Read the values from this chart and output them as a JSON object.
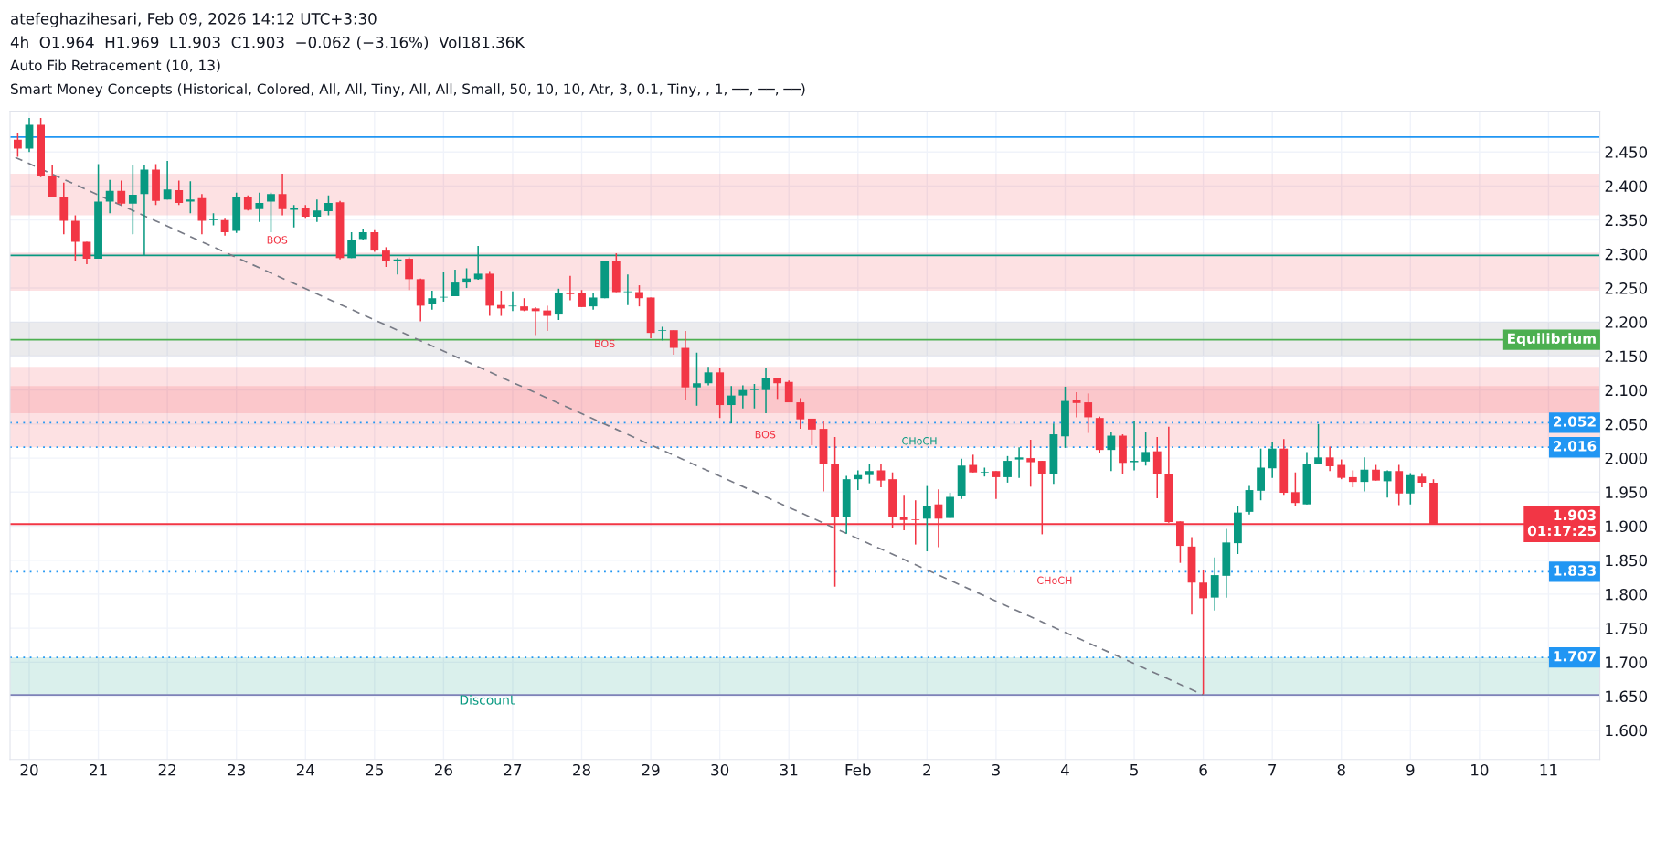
{
  "chart_data": {
    "type": "candlestick",
    "title": "atefeghazihesari, Feb 09, 2026 14:12 UTC+3:30",
    "subtitle": "4h  O1.964  H1.969  L1.903  C1.903  −0.062 (−3.16%)  Vol181.36K",
    "annotations": [
      "Auto Fib Retracement (10, 13)",
      "Smart Money Concepts (Historical, Colored, All, All, Tiny, All, All, Small, 50, 10, 10, Atr, 3, 0.1, Tiny, , 1, ──, ──, ──)",
      "BOS",
      "BOS",
      "BOS",
      "CHoCH",
      "CHoCH"
    ],
    "x": [
      "2026-01-19T20:00",
      "2026-01-20T00:00",
      "2026-01-20T04:00",
      "2026-01-20T08:00",
      "2026-01-20T12:00",
      "2026-01-20T16:00",
      "2026-01-20T20:00",
      "2026-01-21T00:00",
      "2026-01-21T04:00",
      "2026-01-21T08:00",
      "2026-01-21T12:00",
      "2026-01-21T16:00",
      "2026-01-21T20:00",
      "2026-01-22T00:00",
      "2026-01-22T04:00",
      "2026-01-22T08:00",
      "2026-01-22T12:00",
      "2026-01-22T16:00",
      "2026-01-22T20:00",
      "2026-01-23T00:00",
      "2026-01-23T04:00",
      "2026-01-23T08:00",
      "2026-01-23T12:00",
      "2026-01-23T16:00",
      "2026-01-23T20:00",
      "2026-01-24T00:00",
      "2026-01-24T04:00",
      "2026-01-24T08:00",
      "2026-01-24T12:00",
      "2026-01-24T16:00",
      "2026-01-24T20:00",
      "2026-01-25T00:00",
      "2026-01-25T04:00",
      "2026-01-25T08:00",
      "2026-01-25T12:00",
      "2026-01-25T16:00",
      "2026-01-25T20:00",
      "2026-01-26T00:00",
      "2026-01-26T04:00",
      "2026-01-26T08:00",
      "2026-01-26T12:00",
      "2026-01-26T16:00",
      "2026-01-26T20:00",
      "2026-01-27T00:00",
      "2026-01-27T04:00",
      "2026-01-27T08:00",
      "2026-01-27T12:00",
      "2026-01-27T16:00",
      "2026-01-27T20:00",
      "2026-01-28T00:00",
      "2026-01-28T04:00",
      "2026-01-28T08:00",
      "2026-01-28T12:00",
      "2026-01-28T16:00",
      "2026-01-28T20:00",
      "2026-01-29T00:00",
      "2026-01-29T04:00",
      "2026-01-29T08:00",
      "2026-01-29T12:00",
      "2026-01-29T16:00",
      "2026-01-29T20:00",
      "2026-01-30T00:00",
      "2026-01-30T04:00",
      "2026-01-30T08:00",
      "2026-01-30T12:00",
      "2026-01-30T16:00",
      "2026-01-30T20:00",
      "2026-01-31T00:00",
      "2026-01-31T04:00",
      "2026-01-31T08:00",
      "2026-01-31T12:00",
      "2026-01-31T16:00",
      "2026-01-31T20:00",
      "2026-02-01T00:00",
      "2026-02-01T04:00",
      "2026-02-01T08:00",
      "2026-02-01T12:00",
      "2026-02-01T16:00",
      "2026-02-01T20:00",
      "2026-02-02T00:00",
      "2026-02-02T04:00",
      "2026-02-02T08:00",
      "2026-02-02T12:00",
      "2026-02-02T16:00",
      "2026-02-02T20:00",
      "2026-02-03T00:00",
      "2026-02-03T04:00",
      "2026-02-03T08:00",
      "2026-02-03T12:00",
      "2026-02-03T16:00",
      "2026-02-03T20:00",
      "2026-02-04T00:00",
      "2026-02-04T04:00",
      "2026-02-04T08:00",
      "2026-02-04T12:00",
      "2026-02-04T16:00",
      "2026-02-04T20:00",
      "2026-02-05T00:00",
      "2026-02-05T04:00",
      "2026-02-05T08:00",
      "2026-02-05T12:00",
      "2026-02-05T16:00",
      "2026-02-05T20:00",
      "2026-02-06T00:00",
      "2026-02-06T04:00",
      "2026-02-06T08:00",
      "2026-02-06T12:00",
      "2026-02-06T16:00",
      "2026-02-06T20:00",
      "2026-02-07T00:00",
      "2026-02-07T04:00",
      "2026-02-07T08:00",
      "2026-02-07T12:00",
      "2026-02-07T16:00",
      "2026-02-07T20:00",
      "2026-02-08T00:00",
      "2026-02-08T04:00",
      "2026-02-08T08:00",
      "2026-02-08T12:00",
      "2026-02-08T16:00",
      "2026-02-08T20:00",
      "2026-02-09T00:00",
      "2026-02-09T04:00",
      "2026-02-09T08:00"
    ],
    "ohlc": [
      [
        2.468,
        2.478,
        2.443,
        2.455
      ],
      [
        2.455,
        2.5,
        2.45,
        2.49
      ],
      [
        2.49,
        2.5,
        2.413,
        2.415
      ],
      [
        2.415,
        2.431,
        2.383,
        2.384
      ],
      [
        2.384,
        2.405,
        2.329,
        2.349
      ],
      [
        2.349,
        2.357,
        2.289,
        2.318
      ],
      [
        2.318,
        2.318,
        2.285,
        2.293
      ],
      [
        2.293,
        2.432,
        2.293,
        2.377
      ],
      [
        2.377,
        2.409,
        2.36,
        2.393
      ],
      [
        2.393,
        2.408,
        2.372,
        2.374
      ],
      [
        2.374,
        2.431,
        2.329,
        2.387
      ],
      [
        2.388,
        2.431,
        2.298,
        2.424
      ],
      [
        2.424,
        2.432,
        2.372,
        2.378
      ],
      [
        2.38,
        2.437,
        2.38,
        2.395
      ],
      [
        2.394,
        2.408,
        2.372,
        2.375
      ],
      [
        2.377,
        2.407,
        2.36,
        2.38
      ],
      [
        2.382,
        2.388,
        2.329,
        2.349
      ],
      [
        2.35,
        2.36,
        2.342,
        2.351
      ],
      [
        2.35,
        2.352,
        2.327,
        2.332
      ],
      [
        2.334,
        2.39,
        2.331,
        2.384
      ],
      [
        2.384,
        2.386,
        2.364,
        2.365
      ],
      [
        2.366,
        2.39,
        2.347,
        2.375
      ],
      [
        2.377,
        2.39,
        2.332,
        2.388
      ],
      [
        2.388,
        2.418,
        2.357,
        2.366
      ],
      [
        2.365,
        2.372,
        2.339,
        2.367
      ],
      [
        2.368,
        2.372,
        2.352,
        2.355
      ],
      [
        2.355,
        2.38,
        2.347,
        2.364
      ],
      [
        2.363,
        2.386,
        2.357,
        2.375
      ],
      [
        2.376,
        2.378,
        2.292,
        2.294
      ],
      [
        2.294,
        2.332,
        2.294,
        2.32
      ],
      [
        2.322,
        2.336,
        2.321,
        2.332
      ],
      [
        2.332,
        2.335,
        2.303,
        2.305
      ],
      [
        2.305,
        2.31,
        2.281,
        2.29
      ],
      [
        2.29,
        2.294,
        2.27,
        2.292
      ],
      [
        2.293,
        2.295,
        2.247,
        2.263
      ],
      [
        2.263,
        2.264,
        2.201,
        2.224
      ],
      [
        2.227,
        2.246,
        2.218,
        2.235
      ],
      [
        2.236,
        2.273,
        2.23,
        2.237
      ],
      [
        2.238,
        2.277,
        2.238,
        2.258
      ],
      [
        2.258,
        2.279,
        2.25,
        2.264
      ],
      [
        2.263,
        2.312,
        2.262,
        2.271
      ],
      [
        2.271,
        2.275,
        2.209,
        2.224
      ],
      [
        2.225,
        2.246,
        2.209,
        2.22
      ],
      [
        2.223,
        2.245,
        2.216,
        2.224
      ],
      [
        2.223,
        2.235,
        2.216,
        2.217
      ],
      [
        2.22,
        2.222,
        2.181,
        2.216
      ],
      [
        2.217,
        2.224,
        2.187,
        2.209
      ],
      [
        2.211,
        2.249,
        2.203,
        2.242
      ],
      [
        2.243,
        2.268,
        2.232,
        2.241
      ],
      [
        2.243,
        2.247,
        2.222,
        2.222
      ],
      [
        2.223,
        2.243,
        2.218,
        2.236
      ],
      [
        2.235,
        2.29,
        2.235,
        2.29
      ],
      [
        2.29,
        2.301,
        2.244,
        2.244
      ],
      [
        2.244,
        2.27,
        2.225,
        2.245
      ],
      [
        2.244,
        2.254,
        2.223,
        2.235
      ],
      [
        2.236,
        2.236,
        2.176,
        2.184
      ],
      [
        2.187,
        2.193,
        2.173,
        2.188
      ],
      [
        2.188,
        2.188,
        2.152,
        2.162
      ],
      [
        2.162,
        2.187,
        2.086,
        2.104
      ],
      [
        2.104,
        2.155,
        2.077,
        2.11
      ],
      [
        2.11,
        2.134,
        2.107,
        2.126
      ],
      [
        2.126,
        2.133,
        2.059,
        2.078
      ],
      [
        2.078,
        2.106,
        2.051,
        2.092
      ],
      [
        2.092,
        2.107,
        2.073,
        2.1
      ],
      [
        2.1,
        2.109,
        2.073,
        2.102
      ],
      [
        2.1,
        2.133,
        2.066,
        2.118
      ],
      [
        2.117,
        2.118,
        2.087,
        2.11
      ],
      [
        2.112,
        2.114,
        2.082,
        2.082
      ],
      [
        2.082,
        2.088,
        2.043,
        2.057
      ],
      [
        2.058,
        2.058,
        2.019,
        2.042
      ],
      [
        2.043,
        2.054,
        1.951,
        1.991
      ],
      [
        1.992,
        2.031,
        1.811,
        1.913
      ],
      [
        1.913,
        1.974,
        1.889,
        1.969
      ],
      [
        1.969,
        1.982,
        1.953,
        1.975
      ],
      [
        1.975,
        1.991,
        1.963,
        1.981
      ],
      [
        1.982,
        1.991,
        1.957,
        1.967
      ],
      [
        1.969,
        1.979,
        1.898,
        1.914
      ],
      [
        1.914,
        1.946,
        1.894,
        1.909
      ],
      [
        1.91,
        1.938,
        1.873,
        1.909
      ],
      [
        1.911,
        1.959,
        1.863,
        1.929
      ],
      [
        1.932,
        1.954,
        1.869,
        1.911
      ],
      [
        1.912,
        1.949,
        1.912,
        1.943
      ],
      [
        1.944,
        1.999,
        1.94,
        1.989
      ],
      [
        1.99,
        2.005,
        1.979,
        1.979
      ],
      [
        1.979,
        1.986,
        1.973,
        1.98
      ],
      [
        1.981,
        1.981,
        1.94,
        1.972
      ],
      [
        1.972,
        2.003,
        1.964,
        1.996
      ],
      [
        1.998,
        2.016,
        1.971,
        2.001
      ],
      [
        2.0,
        2.027,
        1.958,
        1.994
      ],
      [
        1.996,
        1.996,
        1.888,
        1.977
      ],
      [
        1.977,
        2.051,
        1.962,
        2.035
      ],
      [
        2.032,
        2.105,
        2.015,
        2.084
      ],
      [
        2.085,
        2.097,
        2.06,
        2.081
      ],
      [
        2.082,
        2.095,
        2.037,
        2.06
      ],
      [
        2.059,
        2.061,
        2.008,
        2.012
      ],
      [
        2.012,
        2.039,
        1.981,
        2.033
      ],
      [
        2.033,
        2.035,
        1.976,
        1.993
      ],
      [
        1.994,
        2.055,
        1.982,
        1.996
      ],
      [
        1.995,
        2.039,
        1.989,
        2.009
      ],
      [
        2.01,
        2.031,
        1.941,
        1.977
      ],
      [
        1.977,
        2.046,
        1.905,
        1.906
      ],
      [
        1.907,
        1.907,
        1.846,
        1.871
      ],
      [
        1.87,
        1.884,
        1.77,
        1.817
      ],
      [
        1.817,
        1.836,
        1.653,
        1.794
      ],
      [
        1.795,
        1.854,
        1.776,
        1.828
      ],
      [
        1.827,
        1.896,
        1.795,
        1.876
      ],
      [
        1.875,
        1.929,
        1.859,
        1.92
      ],
      [
        1.921,
        1.959,
        1.917,
        1.953
      ],
      [
        1.952,
        2.014,
        1.938,
        1.986
      ],
      [
        1.985,
        2.023,
        1.971,
        2.014
      ],
      [
        2.014,
        2.028,
        1.946,
        1.949
      ],
      [
        1.95,
        1.979,
        1.929,
        1.934
      ],
      [
        1.932,
        2.009,
        1.932,
        1.991
      ],
      [
        1.991,
        2.05,
        1.991,
        2.001
      ],
      [
        2.001,
        2.017,
        1.981,
        1.988
      ],
      [
        1.99,
        1.998,
        1.969,
        1.971
      ],
      [
        1.972,
        1.982,
        1.957,
        1.965
      ],
      [
        1.965,
        2.001,
        1.951,
        1.983
      ],
      [
        1.983,
        1.99,
        1.967,
        1.967
      ],
      [
        1.966,
        1.982,
        1.942,
        1.981
      ],
      [
        1.981,
        1.99,
        1.931,
        1.948
      ],
      [
        1.948,
        1.978,
        1.932,
        1.975
      ],
      [
        1.973,
        1.978,
        1.957,
        1.964
      ],
      [
        1.964,
        1.969,
        1.903,
        1.903
      ]
    ],
    "series": [
      {
        "type": "line",
        "x": [
          "2026-01-19T19:10",
          "2026-02-06T00:00"
        ],
        "values": [
          2.442,
          1.652
        ],
        "color": "#787b86",
        "line_style": "dashed"
      }
    ],
    "ref_lines": [
      {
        "axis": "y",
        "value": 2.472,
        "color": "#2196f3",
        "line_style": "solid"
      },
      {
        "axis": "y",
        "value": 2.298,
        "color": "#089981",
        "line_style": "solid"
      },
      {
        "axis": "y",
        "value": 2.174,
        "label": "Equilibrium",
        "color": "#4caf50",
        "line_style": "solid"
      },
      {
        "axis": "y",
        "value": 2.052,
        "label": "2.052",
        "color": "#2196f3",
        "line_style": "dotted"
      },
      {
        "axis": "y",
        "value": 2.016,
        "label": "2.016",
        "color": "#2196f3",
        "line_style": "dotted"
      },
      {
        "axis": "y",
        "value": 1.903,
        "label": "1.903\n01:17:25",
        "color": "#f23645",
        "line_style": "solid"
      },
      {
        "axis": "y",
        "value": 1.833,
        "label": "1.833",
        "color": "#2196f3",
        "line_style": "dotted"
      },
      {
        "axis": "y",
        "value": 1.707,
        "label": "1.707",
        "color": "#2196f3",
        "line_style": "dotted"
      },
      {
        "axis": "y",
        "value": 1.652,
        "color": "#7e82b8",
        "line_style": "solid"
      }
    ],
    "bands": [
      {
        "axis": "y",
        "from": 2.357,
        "to": 2.418,
        "color": "#f23645"
      },
      {
        "axis": "y",
        "from": 2.246,
        "to": 2.302,
        "color": "#f23645"
      },
      {
        "axis": "y",
        "from": 2.15,
        "to": 2.2,
        "color": "#787b86"
      },
      {
        "axis": "y",
        "from": 2.066,
        "to": 2.134,
        "color": "#f23645"
      },
      {
        "axis": "y",
        "from": 2.066,
        "to": 2.106,
        "color": "#f23645"
      },
      {
        "axis": "y",
        "from": 2.016,
        "to": 2.066,
        "color": "#f23645"
      },
      {
        "axis": "y",
        "from": 1.652,
        "to": 1.707,
        "label": "Discount",
        "color": "#089981"
      }
    ],
    "xlim": [
      "2026-01-19T17:20",
      "2026-02-11T17:50"
    ],
    "xticks": [
      {
        "value": "2026-01-20",
        "label": "20"
      },
      {
        "value": "2026-01-21",
        "label": "21"
      },
      {
        "value": "2026-01-22",
        "label": "22"
      },
      {
        "value": "2026-01-23",
        "label": "23"
      },
      {
        "value": "2026-01-24",
        "label": "24"
      },
      {
        "value": "2026-01-25",
        "label": "25"
      },
      {
        "value": "2026-01-26",
        "label": "26"
      },
      {
        "value": "2026-01-27",
        "label": "27"
      },
      {
        "value": "2026-01-28",
        "label": "28"
      },
      {
        "value": "2026-01-29",
        "label": "29"
      },
      {
        "value": "2026-01-30",
        "label": "30"
      },
      {
        "value": "2026-01-31",
        "label": "31"
      },
      {
        "value": "2026-02-01",
        "label": "Feb"
      },
      {
        "value": "2026-02-02",
        "label": "2"
      },
      {
        "value": "2026-02-03",
        "label": "3"
      },
      {
        "value": "2026-02-04",
        "label": "4"
      },
      {
        "value": "2026-02-05",
        "label": "5"
      },
      {
        "value": "2026-02-06",
        "label": "6"
      },
      {
        "value": "2026-02-07",
        "label": "7"
      },
      {
        "value": "2026-02-08",
        "label": "8"
      },
      {
        "value": "2026-02-09",
        "label": "9"
      },
      {
        "value": "2026-02-10",
        "label": "10"
      },
      {
        "value": "2026-02-11",
        "label": "11"
      }
    ],
    "ylim": [
      1.557,
      2.51
    ],
    "yticks": [
      {
        "value": 1.6,
        "label": "1.600"
      },
      {
        "value": 1.65,
        "label": "1.650"
      },
      {
        "value": 1.7,
        "label": "1.700"
      },
      {
        "value": 1.75,
        "label": "1.750"
      },
      {
        "value": 1.8,
        "label": "1.800"
      },
      {
        "value": 1.85,
        "label": "1.850"
      },
      {
        "value": 1.9,
        "label": "1.900"
      },
      {
        "value": 1.95,
        "label": "1.950"
      },
      {
        "value": 2.0,
        "label": "2.000"
      },
      {
        "value": 2.05,
        "label": "2.050"
      },
      {
        "value": 2.1,
        "label": "2.100"
      },
      {
        "value": 2.15,
        "label": "2.150"
      },
      {
        "value": 2.2,
        "label": "2.200"
      },
      {
        "value": 2.25,
        "label": "2.250"
      },
      {
        "value": 2.3,
        "label": "2.300"
      },
      {
        "value": 2.35,
        "label": "2.350"
      },
      {
        "value": 2.4,
        "label": "2.400"
      },
      {
        "value": 2.45,
        "label": "2.450"
      }
    ],
    "grid": true
  }
}
